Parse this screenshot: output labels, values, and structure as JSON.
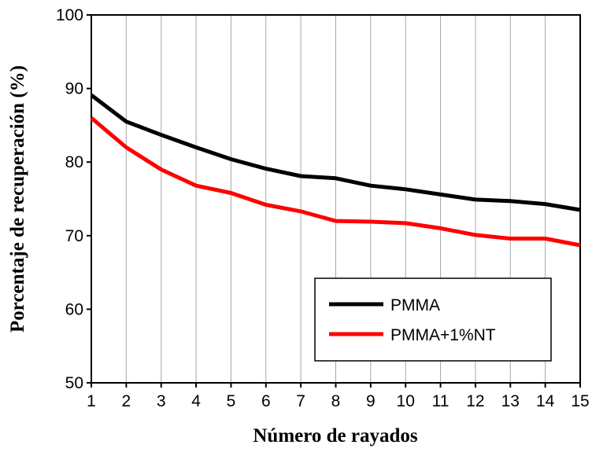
{
  "chart_data": {
    "type": "line",
    "title": "",
    "xlabel": "Número de rayados",
    "ylabel": "Porcentaje de recuperación (%)",
    "x": [
      1,
      2,
      3,
      4,
      5,
      6,
      7,
      8,
      9,
      10,
      11,
      12,
      13,
      14,
      15
    ],
    "xlim": [
      1,
      15
    ],
    "ylim": [
      50,
      100
    ],
    "y_ticks": [
      50,
      60,
      70,
      80,
      90,
      100
    ],
    "grid": "vertical",
    "legend_position": "bottom-right",
    "series": [
      {
        "name": "PMMA",
        "color": "#000000",
        "values": [
          89.1,
          85.5,
          83.7,
          82.0,
          80.4,
          79.1,
          78.1,
          77.8,
          76.8,
          76.3,
          75.6,
          74.9,
          74.7,
          74.3,
          73.5
        ]
      },
      {
        "name": "PMMA+1%NT",
        "color": "#ff0000",
        "values": [
          86.0,
          82.0,
          79.0,
          76.8,
          75.8,
          74.2,
          73.3,
          72.0,
          71.9,
          71.7,
          71.0,
          70.1,
          69.6,
          69.6,
          68.7
        ]
      }
    ]
  }
}
